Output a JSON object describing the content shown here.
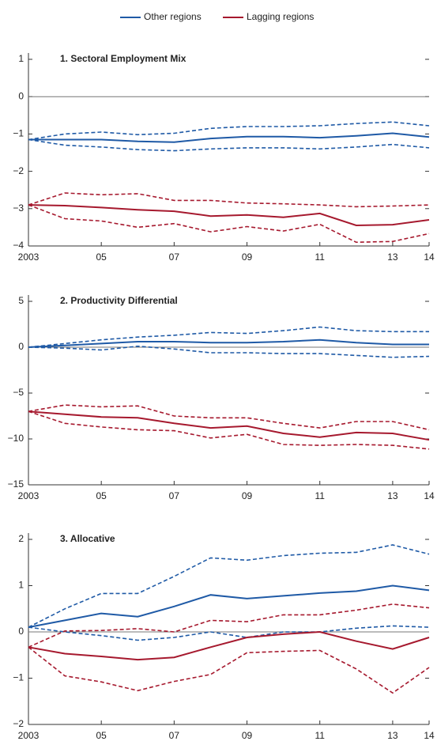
{
  "chart_data": [
    {
      "type": "line",
      "title": "1. Sectoral Employment Mix",
      "x": [
        2003,
        2004,
        2005,
        2006,
        2007,
        2008,
        2009,
        2010,
        2011,
        2012,
        2013,
        2014
      ],
      "xlim": [
        2003,
        2014
      ],
      "xticks": [
        2003,
        {
          "value": 2005,
          "label": "05"
        },
        {
          "value": 2007,
          "label": "07"
        },
        {
          "value": 2009,
          "label": "09"
        },
        {
          "value": 2011,
          "label": "11"
        },
        {
          "value": 2013,
          "label": "13"
        },
        {
          "value": 2014,
          "label": "14"
        }
      ],
      "ylim": [
        -4,
        1
      ],
      "yticks": [
        {
          "value": -4,
          "label": "−4"
        },
        {
          "value": -3,
          "label": "−3"
        },
        {
          "value": -2,
          "label": "−2"
        },
        {
          "value": -1,
          "label": "−1"
        },
        0,
        1
      ],
      "series": [
        {
          "name": "Other regions",
          "color": "#1f5aa6",
          "values": [
            -1.15,
            -1.15,
            -1.15,
            -1.2,
            -1.22,
            -1.12,
            -1.07,
            -1.07,
            -1.1,
            -1.05,
            -0.98,
            -1.08
          ],
          "upper": [
            -1.15,
            -1.0,
            -0.95,
            -1.02,
            -0.98,
            -0.85,
            -0.8,
            -0.8,
            -0.78,
            -0.72,
            -0.68,
            -0.78
          ],
          "lower": [
            -1.15,
            -1.3,
            -1.35,
            -1.42,
            -1.45,
            -1.4,
            -1.37,
            -1.37,
            -1.4,
            -1.35,
            -1.28,
            -1.37
          ]
        },
        {
          "name": "Lagging regions",
          "color": "#a6192e",
          "values": [
            -2.9,
            -2.92,
            -2.97,
            -3.03,
            -3.07,
            -3.2,
            -3.17,
            -3.23,
            -3.13,
            -3.45,
            -3.43,
            -3.3
          ],
          "upper": [
            -2.9,
            -2.58,
            -2.63,
            -2.6,
            -2.78,
            -2.78,
            -2.85,
            -2.87,
            -2.9,
            -2.95,
            -2.93,
            -2.9
          ],
          "lower": [
            -2.9,
            -3.27,
            -3.33,
            -3.5,
            -3.4,
            -3.62,
            -3.48,
            -3.6,
            -3.42,
            -3.9,
            -3.88,
            -3.67
          ]
        }
      ]
    },
    {
      "type": "line",
      "title": "2. Productivity Differential",
      "x": [
        2003,
        2004,
        2005,
        2006,
        2007,
        2008,
        2009,
        2010,
        2011,
        2012,
        2013,
        2014
      ],
      "xlim": [
        2003,
        2014
      ],
      "xticks": [
        2003,
        {
          "value": 2005,
          "label": "05"
        },
        {
          "value": 2007,
          "label": "07"
        },
        {
          "value": 2009,
          "label": "09"
        },
        {
          "value": 2011,
          "label": "11"
        },
        {
          "value": 2013,
          "label": "13"
        },
        {
          "value": 2014,
          "label": "14"
        }
      ],
      "ylim": [
        -15,
        5
      ],
      "yticks": [
        {
          "value": -15,
          "label": "−15"
        },
        {
          "value": -10,
          "label": "−10"
        },
        {
          "value": -5,
          "label": "−5"
        },
        0,
        5
      ],
      "series": [
        {
          "color": "#1f5aa6",
          "values": [
            0,
            0.2,
            0.4,
            0.6,
            0.6,
            0.5,
            0.5,
            0.6,
            0.8,
            0.5,
            0.3,
            0.3
          ],
          "upper": [
            0,
            0.4,
            0.8,
            1.1,
            1.3,
            1.6,
            1.5,
            1.8,
            2.2,
            1.8,
            1.7,
            1.7
          ],
          "lower": [
            0,
            -0.1,
            -0.3,
            0.1,
            -0.2,
            -0.6,
            -0.6,
            -0.7,
            -0.7,
            -0.9,
            -1.1,
            -1.0
          ]
        },
        {
          "color": "#a6192e",
          "values": [
            -7.0,
            -7.3,
            -7.6,
            -7.7,
            -8.3,
            -8.8,
            -8.6,
            -9.4,
            -9.8,
            -9.3,
            -9.4,
            -10.1
          ],
          "upper": [
            -7.0,
            -6.3,
            -6.5,
            -6.4,
            -7.5,
            -7.7,
            -7.7,
            -8.3,
            -8.8,
            -8.1,
            -8.1,
            -9.0
          ],
          "lower": [
            -7.0,
            -8.3,
            -8.7,
            -9.0,
            -9.1,
            -9.9,
            -9.5,
            -10.6,
            -10.7,
            -10.6,
            -10.7,
            -11.1
          ]
        }
      ]
    },
    {
      "type": "line",
      "title": "3. Allocative",
      "x": [
        2003,
        2004,
        2005,
        2006,
        2007,
        2008,
        2009,
        2010,
        2011,
        2012,
        2013,
        2014
      ],
      "xlim": [
        2003,
        2014
      ],
      "xticks": [
        2003,
        {
          "value": 2005,
          "label": "05"
        },
        {
          "value": 2007,
          "label": "07"
        },
        {
          "value": 2009,
          "label": "09"
        },
        {
          "value": 2011,
          "label": "11"
        },
        {
          "value": 2013,
          "label": "13"
        },
        {
          "value": 2014,
          "label": "14"
        }
      ],
      "ylim": [
        -2,
        2
      ],
      "yticks": [
        {
          "value": -2,
          "label": "−2"
        },
        {
          "value": -1,
          "label": "−1"
        },
        0,
        1,
        2
      ],
      "series": [
        {
          "color": "#1f5aa6",
          "values": [
            0.1,
            0.25,
            0.4,
            0.33,
            0.55,
            0.8,
            0.72,
            0.78,
            0.84,
            0.88,
            1.0,
            0.9
          ],
          "upper": [
            0.1,
            0.5,
            0.83,
            0.83,
            1.2,
            1.6,
            1.55,
            1.65,
            1.7,
            1.72,
            1.88,
            1.68
          ],
          "lower": [
            0.1,
            0.0,
            -0.08,
            -0.18,
            -0.12,
            0.0,
            -0.12,
            0.0,
            0.0,
            0.08,
            0.13,
            0.1
          ]
        },
        {
          "color": "#a6192e",
          "values": [
            -0.33,
            -0.47,
            -0.53,
            -0.6,
            -0.55,
            -0.33,
            -0.12,
            -0.05,
            0.0,
            -0.2,
            -0.37,
            -0.12
          ],
          "upper": [
            -0.33,
            0.02,
            0.03,
            0.07,
            0.0,
            0.25,
            0.22,
            0.37,
            0.37,
            0.47,
            0.6,
            0.52
          ],
          "lower": [
            -0.33,
            -0.95,
            -1.08,
            -1.27,
            -1.07,
            -0.92,
            -0.45,
            -0.42,
            -0.4,
            -0.8,
            -1.32,
            -0.77
          ]
        }
      ]
    }
  ]
}
